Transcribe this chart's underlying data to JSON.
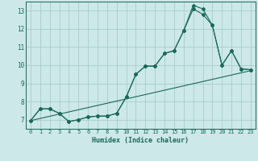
{
  "xlabel": "Humidex (Indice chaleur)",
  "bg_color": "#cce8e8",
  "grid_color": "#aacccc",
  "line_color": "#1a6858",
  "xlim": [
    -0.5,
    23.5
  ],
  "ylim": [
    6.5,
    13.5
  ],
  "xticks": [
    0,
    1,
    2,
    3,
    4,
    5,
    6,
    7,
    8,
    9,
    10,
    11,
    12,
    13,
    14,
    15,
    16,
    17,
    18,
    19,
    20,
    21,
    22,
    23
  ],
  "yticks": [
    7,
    8,
    9,
    10,
    11,
    12,
    13
  ],
  "line1_x": [
    0,
    1,
    2,
    3,
    4,
    5,
    6,
    7,
    8,
    9,
    10,
    11,
    12,
    13,
    14,
    15,
    16,
    17,
    18,
    19,
    20,
    21,
    22,
    23
  ],
  "line1_y": [
    6.95,
    7.6,
    7.6,
    7.35,
    6.9,
    7.0,
    7.15,
    7.2,
    7.2,
    7.35,
    8.25,
    9.5,
    9.95,
    9.95,
    10.65,
    10.8,
    11.9,
    13.1,
    12.8,
    12.2,
    10.0,
    10.8,
    9.8,
    9.75
  ],
  "line2_x": [
    0,
    1,
    2,
    3,
    4,
    5,
    6,
    7,
    8,
    9,
    10,
    11,
    12,
    13,
    14,
    15,
    16,
    17,
    18,
    19,
    20,
    21,
    22,
    23
  ],
  "line2_y": [
    6.95,
    7.6,
    7.6,
    7.35,
    6.9,
    7.0,
    7.15,
    7.2,
    7.2,
    7.35,
    8.25,
    9.5,
    9.95,
    9.95,
    10.65,
    10.8,
    11.9,
    13.3,
    13.1,
    12.2,
    10.0,
    10.8,
    9.8,
    9.75
  ],
  "line3_x": [
    0,
    23
  ],
  "line3_y": [
    6.95,
    9.7
  ]
}
